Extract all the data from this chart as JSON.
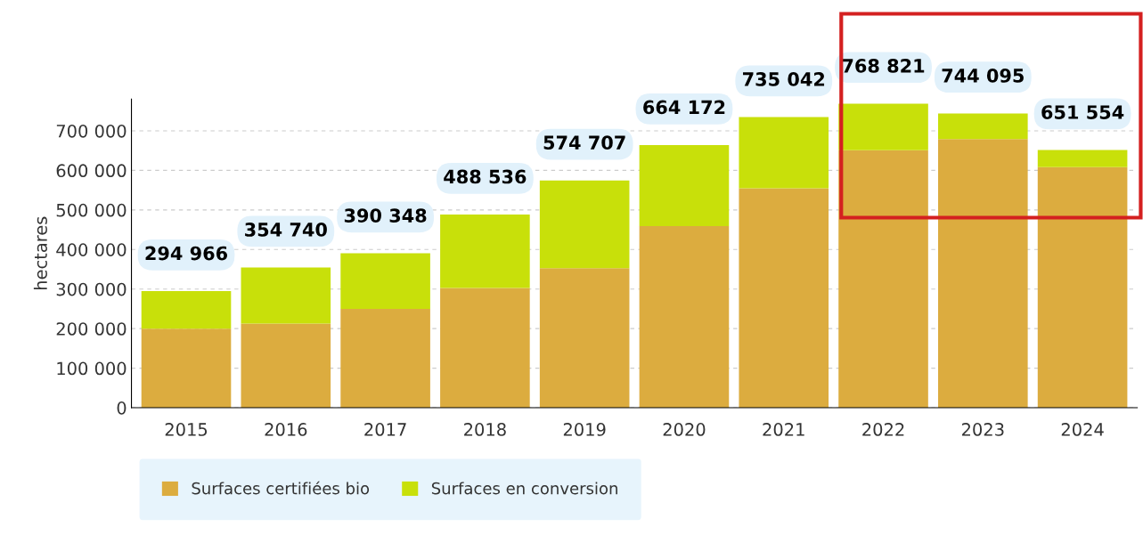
{
  "chart_data": {
    "type": "bar",
    "stacked": true,
    "ylabel": "hectares",
    "categories": [
      "2015",
      "2016",
      "2017",
      "2018",
      "2019",
      "2020",
      "2021",
      "2022",
      "2023",
      "2024"
    ],
    "series": [
      {
        "name": "Surfaces certifiées bio",
        "color": "#dcac3f",
        "values": [
          200000,
          213000,
          250000,
          303000,
          353000,
          459000,
          555000,
          651000,
          679000,
          608000
        ]
      },
      {
        "name": "Surfaces en conversion",
        "color": "#c8e00a",
        "values": [
          94966,
          141740,
          140348,
          185536,
          221707,
          205172,
          180042,
          117821,
          65095,
          43554
        ]
      }
    ],
    "totals": [
      "294 966",
      "354 740",
      "390 348",
      "488 536",
      "574 707",
      "664 172",
      "735 042",
      "768 821",
      "744 095",
      "651 554"
    ],
    "ylim": [
      0,
      780000
    ],
    "yticks": [
      {
        "value": 0,
        "label": "0"
      },
      {
        "value": 100000,
        "label": "100 000"
      },
      {
        "value": 200000,
        "label": "200 000"
      },
      {
        "value": 300000,
        "label": "300 000"
      },
      {
        "value": 400000,
        "label": "400 000"
      },
      {
        "value": 500000,
        "label": "500 000"
      },
      {
        "value": 600000,
        "label": "600 000"
      },
      {
        "value": 700000,
        "label": "700 000"
      }
    ],
    "grid": "y",
    "legend": "bottom"
  }
}
